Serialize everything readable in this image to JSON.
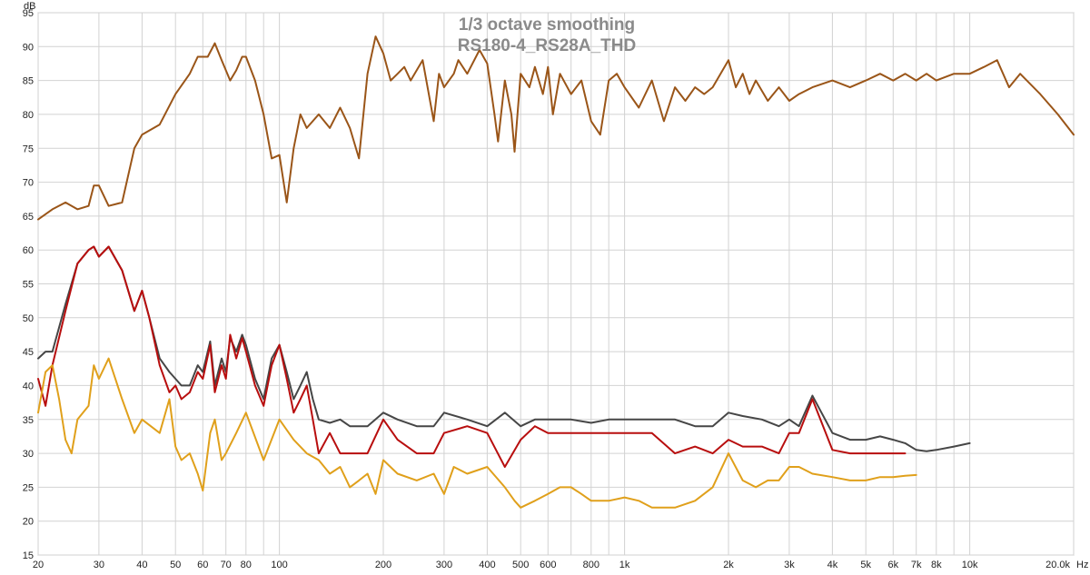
{
  "chart_data": {
    "type": "line",
    "title": "1/3 octave smoothing",
    "subtitle": "RS180-4_RS28A_THD",
    "ylabel": "dB",
    "xlabel_unit": "Hz",
    "x_scale": "log",
    "xlim": [
      20,
      20000
    ],
    "ylim": [
      15,
      95
    ],
    "grid": true,
    "legend": "none",
    "x_ticks": [
      {
        "value": 20,
        "label": "20"
      },
      {
        "value": 30,
        "label": "30"
      },
      {
        "value": 40,
        "label": "40"
      },
      {
        "value": 50,
        "label": "50"
      },
      {
        "value": 60,
        "label": "60"
      },
      {
        "value": 70,
        "label": "70"
      },
      {
        "value": 80,
        "label": "80"
      },
      {
        "value": 100,
        "label": "100"
      },
      {
        "value": 200,
        "label": "200"
      },
      {
        "value": 300,
        "label": "300"
      },
      {
        "value": 400,
        "label": "400"
      },
      {
        "value": 500,
        "label": "500"
      },
      {
        "value": 600,
        "label": "600"
      },
      {
        "value": 800,
        "label": "800"
      },
      {
        "value": 1000,
        "label": "1k"
      },
      {
        "value": 2000,
        "label": "2k"
      },
      {
        "value": 3000,
        "label": "3k"
      },
      {
        "value": 4000,
        "label": "4k"
      },
      {
        "value": 5000,
        "label": "5k"
      },
      {
        "value": 6000,
        "label": "6k"
      },
      {
        "value": 7000,
        "label": "7k"
      },
      {
        "value": 8000,
        "label": "8k"
      },
      {
        "value": 10000,
        "label": "10k"
      },
      {
        "value": 20000,
        "label": "20.0k"
      }
    ],
    "y_ticks": [
      15,
      20,
      25,
      30,
      35,
      40,
      45,
      50,
      55,
      60,
      65,
      70,
      75,
      80,
      85,
      90,
      95
    ],
    "series": [
      {
        "color": "#9a5518",
        "x": [
          20,
          22,
          24,
          26,
          28,
          29,
          30,
          32,
          35,
          38,
          40,
          45,
          50,
          55,
          58,
          62,
          65,
          68,
          72,
          75,
          78,
          80,
          85,
          90,
          95,
          100,
          105,
          110,
          115,
          120,
          130,
          140,
          150,
          160,
          170,
          180,
          190,
          200,
          210,
          220,
          230,
          240,
          260,
          280,
          290,
          300,
          320,
          330,
          350,
          380,
          400,
          420,
          430,
          450,
          470,
          480,
          500,
          530,
          550,
          580,
          600,
          620,
          650,
          700,
          750,
          800,
          850,
          900,
          950,
          1000,
          1100,
          1200,
          1300,
          1400,
          1500,
          1600,
          1700,
          1800,
          2000,
          2100,
          2200,
          2300,
          2400,
          2600,
          2800,
          3000,
          3200,
          3500,
          4000,
          4500,
          5000,
          5500,
          6000,
          6500,
          7000,
          7500,
          8000,
          9000,
          10000,
          11000,
          12000,
          13000,
          14000,
          16000,
          18000,
          20000
        ],
        "values": [
          64.5,
          66,
          67,
          66,
          66.5,
          69.5,
          69.5,
          66.5,
          67,
          75,
          77,
          78.5,
          83,
          86,
          88.5,
          88.5,
          90.5,
          88,
          85,
          86.5,
          88.5,
          88.5,
          85,
          80,
          73.5,
          74,
          67,
          75,
          80,
          78,
          80,
          78,
          81,
          78,
          73.5,
          86,
          91.5,
          89,
          85,
          86,
          87,
          85,
          88,
          79,
          86,
          84,
          86,
          88,
          86,
          89.5,
          87.5,
          80,
          76,
          85,
          80,
          74.5,
          86,
          84,
          87,
          83,
          87,
          80,
          86,
          83,
          85,
          79,
          77,
          85,
          86,
          84,
          81,
          85,
          79,
          84,
          82,
          84,
          83,
          84,
          88,
          84,
          86,
          83,
          85,
          82,
          84,
          82,
          83,
          84,
          85,
          84,
          85,
          86,
          85,
          86,
          85,
          86,
          85,
          86,
          86,
          87,
          88,
          84,
          86,
          83,
          80,
          77
        ]
      },
      {
        "color": "#464646",
        "x": [
          20,
          21,
          22,
          24,
          26,
          28,
          29,
          30,
          32,
          35,
          38,
          40,
          42,
          45,
          48,
          50,
          52,
          55,
          58,
          60,
          63,
          65,
          68,
          70,
          72,
          75,
          78,
          80,
          85,
          90,
          95,
          100,
          105,
          110,
          115,
          120,
          125,
          130,
          140,
          150,
          160,
          180,
          200,
          220,
          250,
          280,
          300,
          350,
          400,
          450,
          500,
          550,
          600,
          650,
          700,
          800,
          900,
          1000,
          1200,
          1400,
          1600,
          1800,
          2000,
          2200,
          2500,
          2800,
          3000,
          3200,
          3500,
          4000,
          4500,
          5000,
          5500,
          6000,
          6500,
          7000,
          7500,
          8000,
          9000,
          10000
        ],
        "values": [
          44,
          45,
          45,
          52,
          58,
          60,
          60.5,
          59,
          60.5,
          57,
          51,
          54,
          50,
          44,
          42,
          41,
          40,
          40,
          43,
          42,
          46.5,
          40,
          44,
          42,
          47,
          45,
          47.5,
          46,
          41,
          38,
          44,
          46,
          42,
          38,
          40,
          42,
          38,
          35,
          34.5,
          35,
          34,
          34,
          36,
          35,
          34,
          34,
          36,
          35,
          34,
          36,
          34,
          35,
          35,
          35,
          35,
          34.5,
          35,
          35,
          35,
          35,
          34,
          34,
          36,
          35.5,
          35,
          34,
          35,
          34,
          38.5,
          33,
          32,
          32,
          32.5,
          32,
          31.5,
          30.5,
          30.3,
          30.5,
          31,
          31.5
        ]
      },
      {
        "color": "#b80e0e",
        "x": [
          20,
          21,
          22,
          24,
          26,
          28,
          29,
          30,
          32,
          35,
          38,
          40,
          42,
          45,
          48,
          50,
          52,
          55,
          58,
          60,
          63,
          65,
          68,
          70,
          72,
          75,
          78,
          80,
          85,
          90,
          95,
          100,
          105,
          110,
          115,
          120,
          125,
          130,
          140,
          150,
          160,
          180,
          200,
          220,
          250,
          280,
          300,
          350,
          400,
          450,
          500,
          550,
          600,
          650,
          700,
          800,
          900,
          1000,
          1200,
          1400,
          1600,
          1800,
          2000,
          2200,
          2500,
          2800,
          3000,
          3200,
          3500,
          4000,
          4500,
          5000,
          5500,
          6000,
          6500
        ],
        "values": [
          41,
          37,
          43,
          51,
          58,
          60,
          60.5,
          59,
          60.5,
          57,
          51,
          54,
          50,
          43,
          39,
          40,
          38,
          39,
          42,
          41,
          46,
          39,
          43,
          41,
          47.5,
          44,
          47,
          45,
          40,
          37,
          43,
          46,
          41,
          36,
          38,
          40,
          35,
          30,
          33,
          30,
          30,
          30,
          35,
          32,
          30,
          30,
          33,
          34,
          33,
          28,
          32,
          34,
          33,
          33,
          33,
          33,
          33,
          33,
          33,
          30,
          31,
          30,
          32,
          31,
          31,
          30,
          33,
          33,
          38,
          30.5,
          30,
          30,
          30,
          30,
          30
        ]
      },
      {
        "color": "#e0a01b",
        "x": [
          20,
          21,
          22,
          23,
          24,
          25,
          26,
          28,
          29,
          30,
          32,
          35,
          38,
          40,
          45,
          48,
          50,
          52,
          55,
          58,
          60,
          63,
          65,
          68,
          70,
          75,
          80,
          90,
          100,
          110,
          120,
          130,
          140,
          150,
          160,
          170,
          180,
          190,
          200,
          220,
          250,
          280,
          300,
          320,
          350,
          400,
          450,
          480,
          500,
          550,
          600,
          650,
          700,
          750,
          800,
          900,
          1000,
          1100,
          1200,
          1400,
          1600,
          1800,
          2000,
          2200,
          2400,
          2600,
          2800,
          3000,
          3200,
          3500,
          4000,
          4500,
          5000,
          5500,
          6000,
          6500,
          7000
        ],
        "values": [
          36,
          42,
          43,
          38,
          32,
          30,
          35,
          37,
          43,
          41,
          44,
          38,
          33,
          35,
          33,
          38,
          31,
          29,
          30,
          27,
          24.5,
          33,
          35,
          29,
          30,
          33,
          36,
          29,
          35,
          32,
          30,
          29,
          27,
          28,
          25,
          26,
          27,
          24,
          29,
          27,
          26,
          27,
          24,
          28,
          27,
          28,
          25,
          23,
          22,
          23,
          24,
          25,
          25,
          24,
          23,
          23,
          23.5,
          23,
          22,
          22,
          23,
          25,
          30,
          26,
          25,
          26,
          26,
          28,
          28,
          27,
          26.5,
          26,
          26,
          26.5,
          26.5,
          26.7,
          26.8
        ]
      }
    ]
  }
}
